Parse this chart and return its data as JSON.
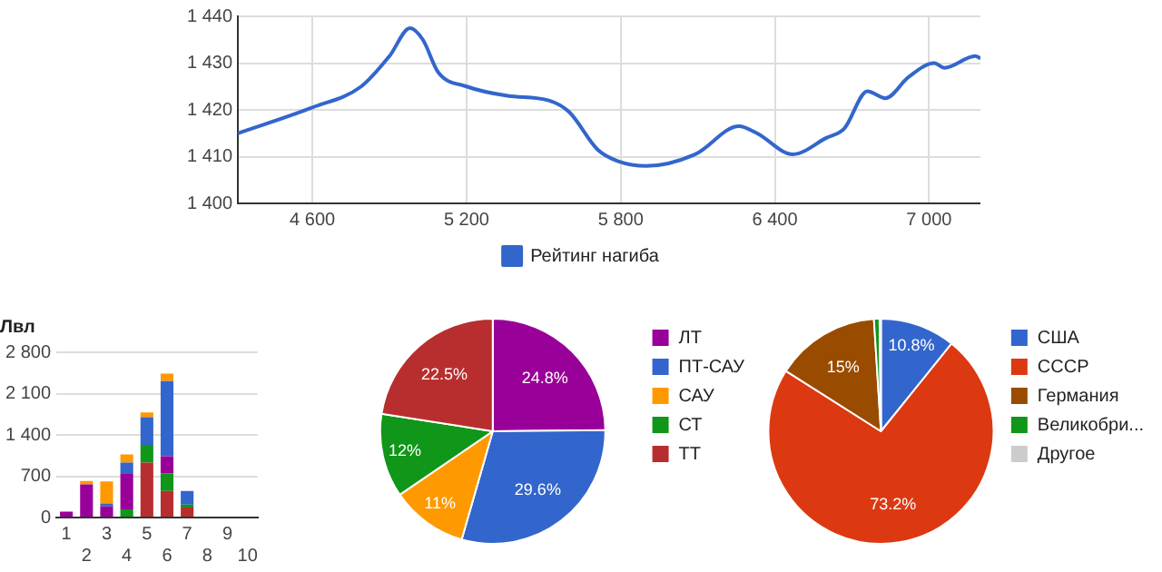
{
  "chart_data": [
    {
      "type": "line",
      "x": [
        4310,
        4600,
        4790,
        4900,
        4980,
        5030,
        5090,
        5200,
        5360,
        5520,
        5600,
        5710,
        5790,
        5900,
        6090,
        6260,
        6330,
        6470,
        6600,
        6670,
        6760,
        6830,
        6920,
        7020,
        7060,
        7180,
        7200
      ],
      "series": [
        {
          "name": "Рейтинг нагиба",
          "color": "#3366cc",
          "values": [
            1415,
            1420.5,
            1425,
            1431.5,
            1437.5,
            1435,
            1428,
            1425,
            1423,
            1422,
            1419.5,
            1411.5,
            1409,
            1408,
            1410.5,
            1416.5,
            1415,
            1410.5,
            1414,
            1416,
            1424,
            1422.5,
            1427,
            1430,
            1429,
            1431.5,
            1431
          ]
        }
      ],
      "xlim": [
        4310,
        7200
      ],
      "xticks": [
        {
          "value": 4600,
          "label": "4 600"
        },
        {
          "value": 5200,
          "label": "5 200"
        },
        {
          "value": 5800,
          "label": "5 800"
        },
        {
          "value": 6400,
          "label": "6 400"
        },
        {
          "value": 7000,
          "label": "7 000"
        }
      ],
      "ylim": [
        1400,
        1440
      ],
      "yticks": [
        {
          "value": 1400,
          "label": "1 400"
        },
        {
          "value": 1410,
          "label": "1 410"
        },
        {
          "value": 1420,
          "label": "1 420"
        },
        {
          "value": 1430,
          "label": "1 430"
        },
        {
          "value": 1440,
          "label": "1 440"
        }
      ],
      "grid": true,
      "legend": "bottom",
      "marker": "none"
    },
    {
      "type": "bar",
      "title": "Лвл",
      "categories": [
        "1",
        "2",
        "3",
        "4",
        "5",
        "6",
        "7",
        "8",
        "9",
        "10"
      ],
      "stacked": true,
      "series": [
        {
          "color": "#b82e2e",
          "values": [
            0,
            0,
            0,
            0,
            930,
            450,
            170,
            0,
            0,
            0
          ]
        },
        {
          "color": "#109618",
          "values": [
            0,
            0,
            0,
            140,
            300,
            300,
            50,
            0,
            0,
            0
          ]
        },
        {
          "color": "#990099",
          "values": [
            100,
            560,
            190,
            610,
            0,
            290,
            0,
            0,
            0,
            0
          ]
        },
        {
          "color": "#3366cc",
          "values": [
            0,
            0,
            50,
            180,
            470,
            1270,
            230,
            0,
            0,
            0
          ]
        },
        {
          "color": "#ff9900",
          "values": [
            0,
            60,
            370,
            140,
            80,
            130,
            0,
            0,
            0,
            0
          ]
        }
      ],
      "ylim": [
        0,
        2800
      ],
      "yticks": [
        0,
        700,
        {
          "value": 1400,
          "label": "1 400"
        },
        {
          "value": 2100,
          "label": "2 100"
        },
        {
          "value": 2800,
          "label": "2 800"
        }
      ],
      "grid": "y",
      "legend": false
    },
    {
      "type": "pie",
      "categories": [
        "ЛТ",
        "ПТ-САУ",
        "САУ",
        "СТ",
        "ТТ"
      ],
      "values": [
        24.8,
        29.6,
        11,
        12,
        22.5
      ],
      "colors": [
        "#990099",
        "#3366cc",
        "#ff9900",
        "#109618",
        "#b82e2e"
      ],
      "value_labels": [
        "24.8%",
        "29.6%",
        "11%",
        "12%",
        "22.5%"
      ],
      "legend": "top right"
    },
    {
      "type": "pie",
      "categories": [
        "США",
        "СССР",
        "Германия",
        "Великобри...",
        "Другое"
      ],
      "values": [
        10.8,
        73.2,
        15,
        0.8,
        0.2
      ],
      "colors": [
        "#3366cc",
        "#dc3912",
        "#994c00",
        "#109618",
        "#cccccc"
      ],
      "value_labels": [
        "10.8%",
        "73.2%",
        "15%",
        null,
        null
      ],
      "legend": "top right"
    }
  ]
}
